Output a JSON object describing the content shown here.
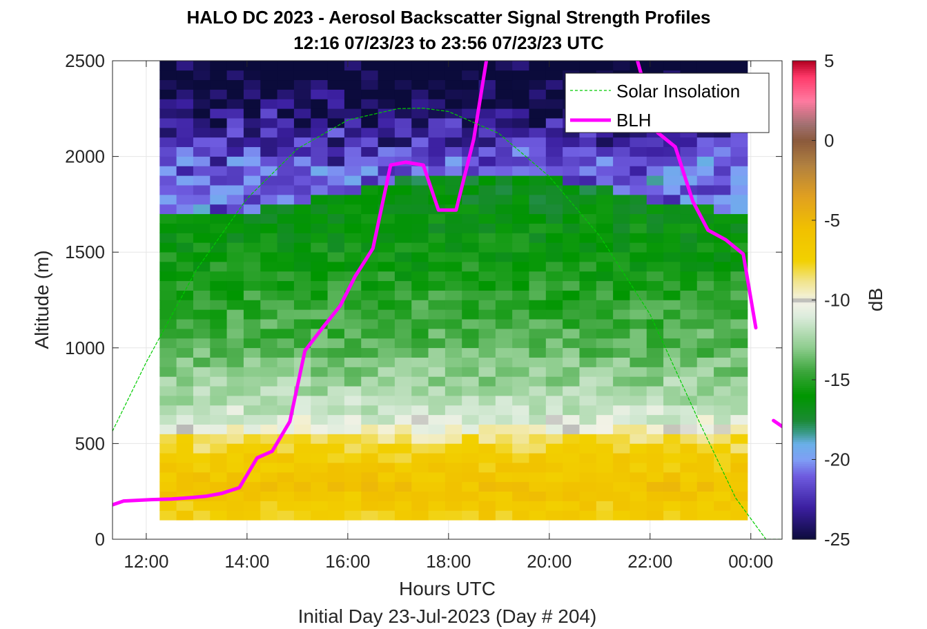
{
  "title_line1": "HALO DC 2023 - Aerosol Backscatter Signal Strength Profiles",
  "title_line2": "12:16 07/23/23 to 23:56 07/23/23  UTC",
  "chart_data": {
    "type": "heatmap",
    "title": "HALO DC 2023 - Aerosol Backscatter Signal Strength Profiles",
    "subtitle": "12:16 07/23/23 to 23:56 07/23/23  UTC",
    "xlabel": "Hours UTC",
    "xlabel2": "Initial Day 23-Jul-2023 (Day # 204)",
    "ylabel": "Altitude (m)",
    "colorbar_label": "dB",
    "xlim_hours": [
      11.33,
      24.62
    ],
    "ylim": [
      0,
      2500
    ],
    "x_ticks": [
      {
        "value": 12,
        "label": "12:00"
      },
      {
        "value": 14,
        "label": "14:00"
      },
      {
        "value": 16,
        "label": "16:00"
      },
      {
        "value": 18,
        "label": "18:00"
      },
      {
        "value": 20,
        "label": "20:00"
      },
      {
        "value": 22,
        "label": "22:00"
      },
      {
        "value": 24,
        "label": "00:00"
      }
    ],
    "y_ticks": [
      0,
      500,
      1000,
      1500,
      2000,
      2500
    ],
    "colorbar_range": [
      -25,
      5
    ],
    "colorbar_ticks": [
      5,
      0,
      -5,
      -10,
      -15,
      -20,
      -25
    ],
    "grid": true,
    "legend_position": "top-right",
    "legend": [
      "Solar Insolation",
      "BLH"
    ],
    "heatmap": {
      "time_start": 12.27,
      "time_step": 0.3333,
      "n_columns": 35,
      "alt_start": 100,
      "alt_step": 50,
      "n_rows": 48,
      "description_values_db_by_altitude": [
        {
          "altitude": 125,
          "db": -7
        },
        {
          "altitude": 250,
          "db": -6
        },
        {
          "altitude": 400,
          "db": -7
        },
        {
          "altitude": 500,
          "db": -8.5
        },
        {
          "altitude": 575,
          "db": -10.5
        },
        {
          "altitude": 700,
          "db": -12
        },
        {
          "altitude": 1000,
          "db": -14
        },
        {
          "altitude": 1500,
          "db": -16
        },
        {
          "altitude": 1900,
          "db": -17
        },
        {
          "altitude": 2200,
          "db": -20
        },
        {
          "altitude": 2450,
          "db": -22
        }
      ]
    },
    "series": [
      {
        "name": "BLH",
        "color": "#ff00ff",
        "points": [
          [
            11.33,
            180
          ],
          [
            11.55,
            200
          ],
          [
            12.1,
            207
          ],
          [
            12.5,
            210
          ],
          [
            12.9,
            218
          ],
          [
            13.2,
            225
          ],
          [
            13.5,
            240
          ],
          [
            13.85,
            270
          ],
          [
            14.2,
            425
          ],
          [
            14.5,
            460
          ],
          [
            14.85,
            615
          ],
          [
            15.15,
            985
          ],
          [
            15.5,
            1105
          ],
          [
            15.85,
            1220
          ],
          [
            16.15,
            1375
          ],
          [
            16.5,
            1520
          ],
          [
            16.85,
            1955
          ],
          [
            17.15,
            1970
          ],
          [
            17.5,
            1955
          ],
          [
            17.8,
            1720
          ],
          [
            18.15,
            1720
          ],
          [
            18.5,
            2090
          ],
          [
            18.75,
            2500
          ]
        ]
      },
      {
        "name": "BLH",
        "color": "#ff00ff",
        "points": [
          [
            21.75,
            2500
          ],
          [
            22.15,
            2125
          ],
          [
            22.5,
            2050
          ],
          [
            22.85,
            1765
          ],
          [
            23.15,
            1615
          ],
          [
            23.5,
            1565
          ],
          [
            23.85,
            1490
          ],
          [
            24.1,
            1105
          ]
        ]
      },
      {
        "name": "BLH",
        "color": "#ff00ff",
        "points": [
          [
            24.45,
            620
          ],
          [
            24.62,
            590
          ]
        ]
      },
      {
        "name": "Solar Insolation",
        "color": "#00cc00",
        "style": "dashed",
        "points": [
          [
            11.33,
            565
          ],
          [
            12.0,
            925
          ],
          [
            13.0,
            1410
          ],
          [
            14.0,
            1780
          ],
          [
            15.0,
            2040
          ],
          [
            16.0,
            2190
          ],
          [
            17.0,
            2250
          ],
          [
            17.5,
            2252
          ],
          [
            18.0,
            2235
          ],
          [
            19.0,
            2120
          ],
          [
            20.0,
            1895
          ],
          [
            21.0,
            1585
          ],
          [
            22.0,
            1175
          ],
          [
            23.0,
            600
          ],
          [
            23.7,
            215
          ],
          [
            24.3,
            0
          ],
          [
            24.62,
            0
          ]
        ]
      }
    ]
  }
}
